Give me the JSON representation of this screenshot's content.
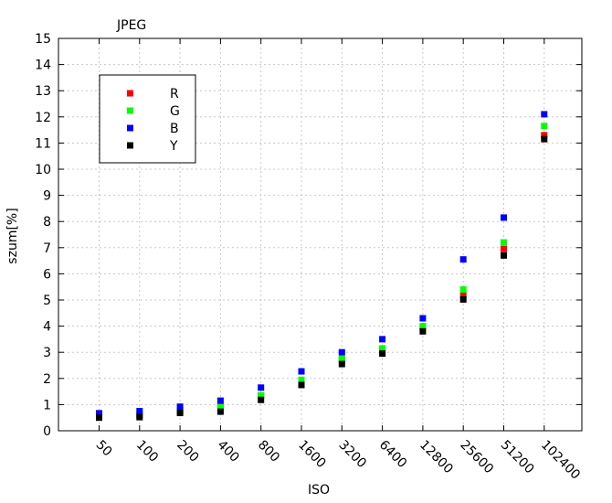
{
  "chart_data": {
    "type": "scatter",
    "title": "JPEG",
    "xlabel": "ISO",
    "ylabel": "szum[%]",
    "ylim": [
      0,
      15
    ],
    "yticks": [
      "0",
      "1",
      "2",
      "3",
      "4",
      "5",
      "6",
      "7",
      "8",
      "9",
      "10",
      "11",
      "12",
      "13",
      "14",
      "15"
    ],
    "categories": [
      "50",
      "100",
      "200",
      "400",
      "800",
      "1600",
      "3200",
      "6400",
      "12800",
      "25600",
      "51200",
      "102400"
    ],
    "grid": true,
    "legend_position": "top-left",
    "series": [
      {
        "name": "R",
        "color": "#ff0000",
        "values": [
          0.57,
          0.6,
          0.77,
          0.95,
          1.35,
          1.9,
          2.7,
          3.1,
          3.95,
          5.2,
          6.95,
          11.3
        ]
      },
      {
        "name": "G",
        "color": "#00ff00",
        "values": [
          0.57,
          0.6,
          0.77,
          0.95,
          1.35,
          1.95,
          2.75,
          3.15,
          4.0,
          5.4,
          7.2,
          11.65
        ]
      },
      {
        "name": "B",
        "color": "#0000ff",
        "values": [
          0.67,
          0.75,
          0.92,
          1.15,
          1.65,
          2.27,
          3.0,
          3.5,
          4.3,
          6.55,
          8.15,
          12.1
        ]
      },
      {
        "name": "Y",
        "color": "#000000",
        "values": [
          0.5,
          0.52,
          0.68,
          0.73,
          1.18,
          1.75,
          2.55,
          2.95,
          3.8,
          5.02,
          6.7,
          11.15
        ]
      }
    ]
  }
}
